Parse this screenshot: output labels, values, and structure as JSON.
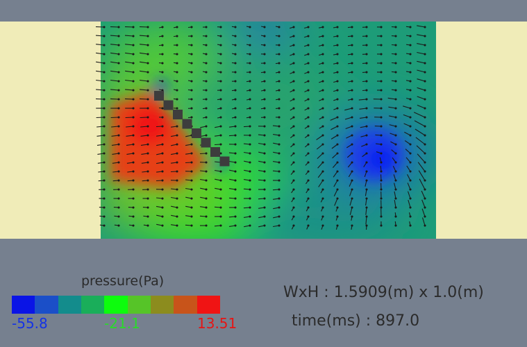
{
  "colors": {
    "background": "#76808f",
    "channel_wall": "#f0ecb8",
    "obstacle": "#3d3d3d",
    "legend_swatches": [
      "#0a14e6",
      "#1b4fc8",
      "#138c8c",
      "#1aae5a",
      "#0dfc0d",
      "#56c428",
      "#8c8c1e",
      "#c8541a",
      "#f01414"
    ],
    "tick_min": "#1432e6",
    "tick_mid": "#28dc28",
    "tick_max": "#e61414"
  },
  "legend": {
    "title": "pressure(Pa)",
    "min_label": "-55.8",
    "mid_label": "-21.1",
    "max_label": "13.51"
  },
  "info": {
    "dimensions": "WxH : 1.5909(m) x 1.0(m)",
    "time": "time(ms) : 897.0"
  }
}
